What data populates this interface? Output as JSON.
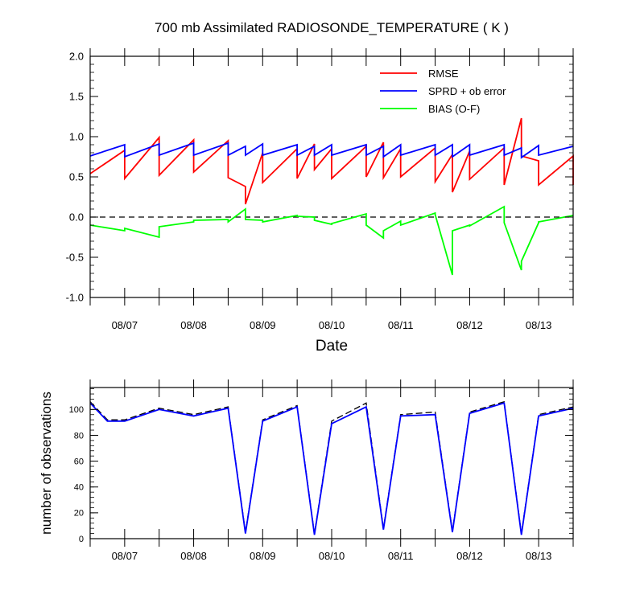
{
  "chart_data": [
    {
      "type": "line",
      "title": "700 mb Assimilated RADIOSONDE_TEMPERATURE ( K )",
      "xlabel": "Date",
      "ylabel": "",
      "xlim": [
        0,
        7
      ],
      "ylim": [
        -1.0,
        2.0
      ],
      "yticks": [
        "-1.0",
        "-0.5",
        "0.0",
        "0.5",
        "1.0",
        "1.5",
        "2.0"
      ],
      "ytick_values": [
        -1.0,
        -0.5,
        0.0,
        0.5,
        1.0,
        1.5,
        2.0
      ],
      "xticks": [
        "08/07",
        "08/08",
        "08/09",
        "08/10",
        "08/11",
        "08/12",
        "08/13"
      ],
      "xtick_values": [
        0.5,
        1.5,
        2.5,
        3.5,
        4.5,
        5.5,
        6.5
      ],
      "zero_line": "dashed",
      "grid": false,
      "legend_position": "top-right",
      "series": [
        {
          "name": "RMSE",
          "color": "#ff0000",
          "points": [
            [
              0.0,
              0.54
            ],
            [
              0.5,
              0.83
            ],
            [
              0.5,
              0.48
            ],
            [
              1.0,
              0.99
            ],
            [
              1.0,
              0.52
            ],
            [
              1.5,
              0.96
            ],
            [
              1.5,
              0.56
            ],
            [
              2.0,
              0.95
            ],
            [
              2.0,
              0.49
            ],
            [
              2.25,
              0.38
            ],
            [
              2.25,
              0.16
            ],
            [
              2.5,
              0.8
            ],
            [
              2.5,
              0.43
            ],
            [
              3.0,
              0.85
            ],
            [
              3.0,
              0.48
            ],
            [
              3.25,
              0.91
            ],
            [
              3.25,
              0.59
            ],
            [
              3.5,
              0.85
            ],
            [
              3.5,
              0.48
            ],
            [
              4.0,
              0.88
            ],
            [
              4.0,
              0.5
            ],
            [
              4.25,
              0.93
            ],
            [
              4.25,
              0.49
            ],
            [
              4.5,
              0.85
            ],
            [
              4.5,
              0.5
            ],
            [
              5.0,
              0.86
            ],
            [
              5.0,
              0.44
            ],
            [
              5.25,
              0.78
            ],
            [
              5.25,
              0.31
            ],
            [
              5.5,
              0.82
            ],
            [
              5.5,
              0.47
            ],
            [
              6.0,
              0.86
            ],
            [
              6.0,
              0.4
            ],
            [
              6.25,
              1.23
            ],
            [
              6.25,
              0.76
            ],
            [
              6.5,
              0.7
            ],
            [
              6.5,
              0.4
            ],
            [
              7.0,
              0.76
            ],
            [
              7.0,
              0.4
            ]
          ]
        },
        {
          "name": "SPRD + ob error",
          "color": "#0000ff",
          "points": [
            [
              0.0,
              0.76
            ],
            [
              0.5,
              0.9
            ],
            [
              0.5,
              0.75
            ],
            [
              1.0,
              0.91
            ],
            [
              1.0,
              0.77
            ],
            [
              1.5,
              0.92
            ],
            [
              1.5,
              0.77
            ],
            [
              2.0,
              0.92
            ],
            [
              2.0,
              0.77
            ],
            [
              2.25,
              0.88
            ],
            [
              2.25,
              0.77
            ],
            [
              2.5,
              0.91
            ],
            [
              2.5,
              0.77
            ],
            [
              3.0,
              0.9
            ],
            [
              3.0,
              0.77
            ],
            [
              3.25,
              0.88
            ],
            [
              3.25,
              0.77
            ],
            [
              3.5,
              0.9
            ],
            [
              3.5,
              0.77
            ],
            [
              4.0,
              0.9
            ],
            [
              4.0,
              0.77
            ],
            [
              4.25,
              0.88
            ],
            [
              4.25,
              0.75
            ],
            [
              4.5,
              0.9
            ],
            [
              4.5,
              0.77
            ],
            [
              5.0,
              0.9
            ],
            [
              5.0,
              0.77
            ],
            [
              5.25,
              0.9
            ],
            [
              5.25,
              0.75
            ],
            [
              5.5,
              0.9
            ],
            [
              5.5,
              0.77
            ],
            [
              6.0,
              0.9
            ],
            [
              6.0,
              0.77
            ],
            [
              6.25,
              0.86
            ],
            [
              6.25,
              0.74
            ],
            [
              6.5,
              0.89
            ],
            [
              6.5,
              0.77
            ],
            [
              7.0,
              0.88
            ]
          ]
        },
        {
          "name": "BIAS (O-F)",
          "color": "#00ff00",
          "points": [
            [
              0.0,
              -0.1
            ],
            [
              0.5,
              -0.17
            ],
            [
              0.5,
              -0.14
            ],
            [
              1.0,
              -0.25
            ],
            [
              1.0,
              -0.12
            ],
            [
              1.5,
              -0.06
            ],
            [
              1.5,
              -0.04
            ],
            [
              2.0,
              -0.03
            ],
            [
              2.0,
              -0.06
            ],
            [
              2.25,
              0.1
            ],
            [
              2.25,
              -0.03
            ],
            [
              2.5,
              -0.04
            ],
            [
              2.5,
              -0.06
            ],
            [
              3.0,
              0.02
            ],
            [
              3.0,
              0.01
            ],
            [
              3.25,
              0.0
            ],
            [
              3.25,
              -0.04
            ],
            [
              3.5,
              -0.09
            ],
            [
              3.5,
              -0.08
            ],
            [
              4.0,
              0.04
            ],
            [
              4.0,
              -0.1
            ],
            [
              4.25,
              -0.26
            ],
            [
              4.25,
              -0.17
            ],
            [
              4.5,
              -0.05
            ],
            [
              4.5,
              -0.1
            ],
            [
              5.0,
              0.05
            ],
            [
              5.0,
              0.03
            ],
            [
              5.25,
              -0.72
            ],
            [
              5.25,
              -0.17
            ],
            [
              5.5,
              -0.1
            ],
            [
              5.5,
              -0.11
            ],
            [
              6.0,
              0.13
            ],
            [
              6.0,
              -0.07
            ],
            [
              6.25,
              -0.66
            ],
            [
              6.25,
              -0.55
            ],
            [
              6.5,
              -0.07
            ],
            [
              6.5,
              -0.06
            ],
            [
              7.0,
              0.02
            ]
          ]
        }
      ]
    },
    {
      "type": "line",
      "title": "",
      "xlabel": "",
      "ylabel": "number of observations",
      "xlim": [
        0,
        7
      ],
      "ylim": [
        0,
        117
      ],
      "yticks": [
        "0",
        "20",
        "40",
        "60",
        "80",
        "100"
      ],
      "ytick_values": [
        0,
        20,
        40,
        60,
        80,
        100
      ],
      "xticks": [
        "08/07",
        "08/08",
        "08/09",
        "08/10",
        "08/11",
        "08/12",
        "08/13"
      ],
      "xtick_values": [
        0.5,
        1.5,
        2.5,
        3.5,
        4.5,
        5.5,
        6.5
      ],
      "grid": false,
      "series": [
        {
          "color": "#000000",
          "style": "dashed",
          "points": [
            [
              0.0,
              106
            ],
            [
              0.25,
              92
            ],
            [
              0.5,
              92
            ],
            [
              1.0,
              101
            ],
            [
              1.5,
              96
            ],
            [
              2.0,
              102
            ],
            [
              2.25,
              5
            ],
            [
              2.5,
              92
            ],
            [
              3.0,
              103
            ],
            [
              3.25,
              4
            ],
            [
              3.5,
              91
            ],
            [
              4.0,
              105
            ],
            [
              4.25,
              8
            ],
            [
              4.5,
              96
            ],
            [
              5.0,
              98
            ],
            [
              5.25,
              6
            ],
            [
              5.5,
              98
            ],
            [
              6.0,
              106
            ],
            [
              6.25,
              4
            ],
            [
              6.5,
              96
            ],
            [
              7.0,
              102
            ]
          ]
        },
        {
          "color": "#0000ff",
          "style": "solid",
          "points": [
            [
              0.0,
              105
            ],
            [
              0.25,
              91
            ],
            [
              0.5,
              91
            ],
            [
              1.0,
              100
            ],
            [
              1.5,
              95
            ],
            [
              2.0,
              101
            ],
            [
              2.25,
              4
            ],
            [
              2.5,
              91
            ],
            [
              3.0,
              102
            ],
            [
              3.25,
              3
            ],
            [
              3.5,
              89
            ],
            [
              4.0,
              102
            ],
            [
              4.25,
              7
            ],
            [
              4.5,
              95
            ],
            [
              5.0,
              96
            ],
            [
              5.25,
              5
            ],
            [
              5.5,
              97
            ],
            [
              6.0,
              105
            ],
            [
              6.25,
              3
            ],
            [
              6.5,
              95
            ],
            [
              7.0,
              101
            ]
          ]
        }
      ]
    }
  ]
}
